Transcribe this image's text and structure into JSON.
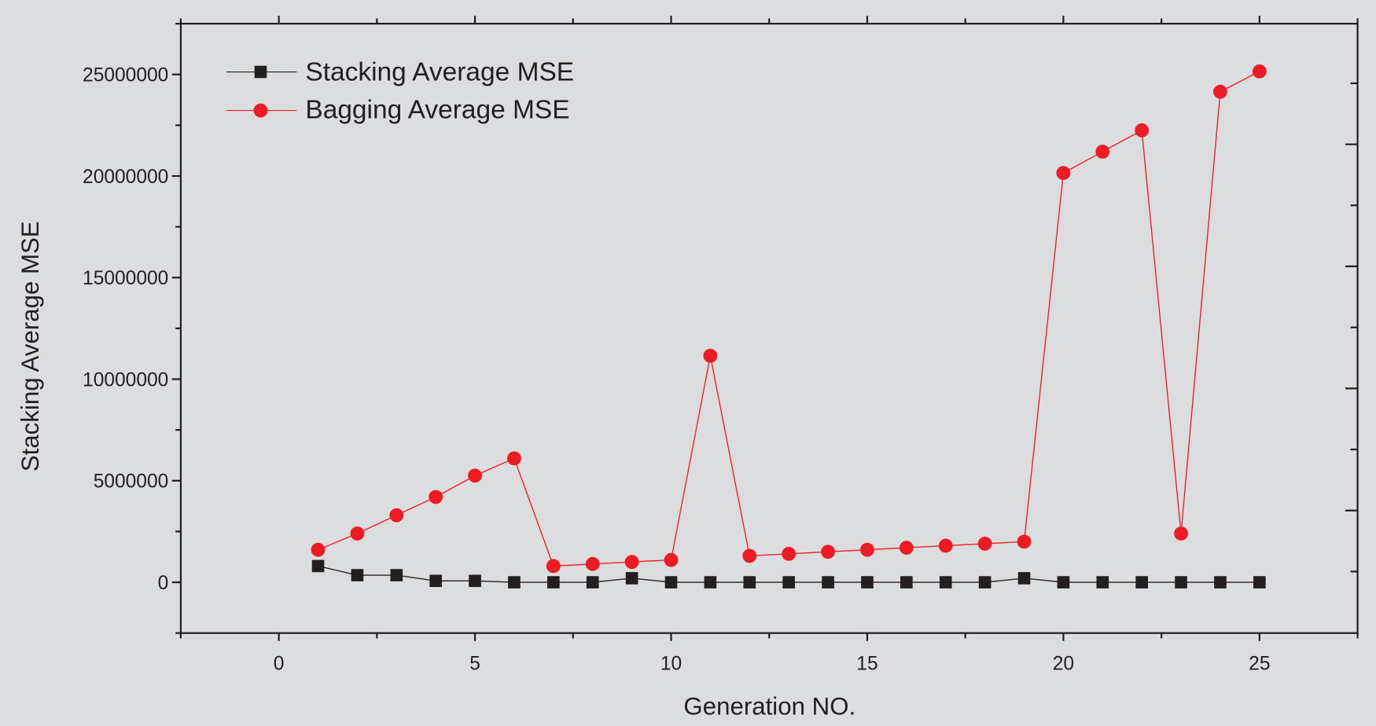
{
  "chart_data": {
    "type": "line",
    "xlabel": "Generation NO.",
    "ylabel": "Stacking Average MSE",
    "xlim": [
      -2.5,
      27.5
    ],
    "ylim": [
      -2500000,
      27500000
    ],
    "xticks": [
      0,
      5,
      10,
      15,
      20,
      25
    ],
    "yticks": [
      0,
      5000000,
      10000000,
      15000000,
      20000000,
      25000000
    ],
    "ytick_labels": [
      "0",
      "5000000",
      "10000000",
      "15000000",
      "20000000",
      "25000000"
    ],
    "grid": false,
    "legend_position": "top-left",
    "background": "#dcdddf",
    "x": [
      1,
      2,
      3,
      4,
      5,
      6,
      7,
      8,
      9,
      10,
      11,
      12,
      13,
      14,
      15,
      16,
      17,
      18,
      19,
      20,
      21,
      22,
      23,
      24,
      25
    ],
    "series": [
      {
        "name": "Stacking Average MSE",
        "color": "#231f20",
        "marker": "square",
        "values": [
          800000,
          350000,
          350000,
          70000,
          70000,
          0,
          0,
          0,
          200000,
          0,
          0,
          0,
          0,
          0,
          0,
          0,
          0,
          0,
          200000,
          0,
          0,
          0,
          0,
          0,
          0
        ]
      },
      {
        "name": "Bagging Average MSE",
        "color": "#ed1c24",
        "marker": "circle",
        "values": [
          1600000,
          2400000,
          3300000,
          4200000,
          5250000,
          6100000,
          800000,
          900000,
          1000000,
          1100000,
          11150000,
          1300000,
          1400000,
          1500000,
          1600000,
          1700000,
          1800000,
          1900000,
          2000000,
          20150000,
          21200000,
          22250000,
          2400000,
          24150000,
          25150000
        ]
      }
    ]
  }
}
